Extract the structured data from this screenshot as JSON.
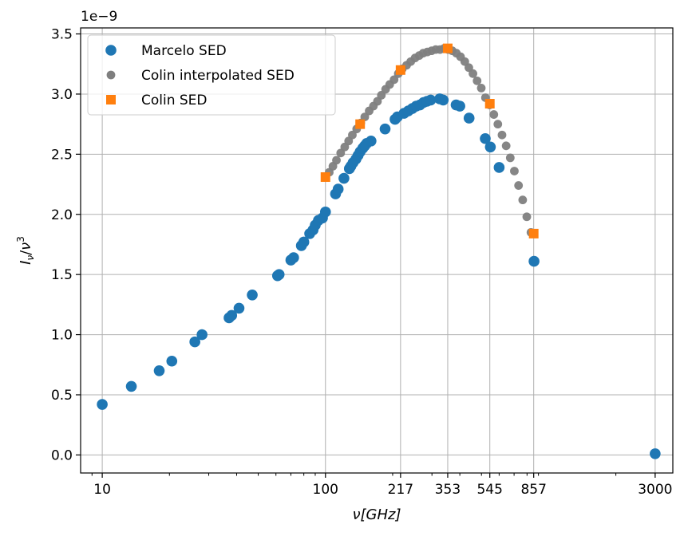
{
  "chart_data": {
    "type": "scatter",
    "x_scale": "log",
    "xlim": [
      8,
      3600
    ],
    "ylim": [
      -0.15,
      3.55
    ],
    "y_multiplier": "1e−9",
    "xlabel": "ν[GHz]",
    "ylabel_main": "I",
    "ylabel_sub": "ν",
    "ylabel_sep": "/",
    "ylabel_base": "ν",
    "ylabel_sup": "3",
    "x_ticks": [
      {
        "value": 10,
        "label": "10"
      },
      {
        "value": 100,
        "label": "100"
      },
      {
        "value": 217,
        "label": "217"
      },
      {
        "value": 353,
        "label": "353"
      },
      {
        "value": 545,
        "label": "545"
      },
      {
        "value": 857,
        "label": "857"
      },
      {
        "value": 3000,
        "label": "3000"
      }
    ],
    "y_ticks": [
      {
        "value": 0.0,
        "label": "0.0"
      },
      {
        "value": 0.5,
        "label": "0.5"
      },
      {
        "value": 1.0,
        "label": "1.0"
      },
      {
        "value": 1.5,
        "label": "1.5"
      },
      {
        "value": 2.0,
        "label": "2.0"
      },
      {
        "value": 2.5,
        "label": "2.5"
      },
      {
        "value": 3.0,
        "label": "3.0"
      },
      {
        "value": 3.5,
        "label": "3.5"
      }
    ],
    "grid": true,
    "legend_position": "top-left",
    "series": [
      {
        "name": "Marcelo SED",
        "marker": "circle",
        "color": "#1f77b4",
        "x": [
          10,
          13.5,
          18,
          20.5,
          26,
          28,
          37,
          38,
          41,
          47,
          61,
          62,
          70,
          72,
          78,
          80,
          85,
          88,
          90,
          93,
          97,
          100,
          111,
          114,
          121,
          128,
          130,
          133,
          137,
          140,
          143,
          147,
          150,
          153,
          160,
          185,
          205,
          210,
          225,
          235,
          245,
          255,
          265,
          275,
          285,
          296,
          325,
          337,
          385,
          400,
          440,
          520,
          548,
          600,
          860,
          3000
        ],
        "y": [
          0.42,
          0.57,
          0.7,
          0.78,
          0.94,
          1.0,
          1.14,
          1.16,
          1.22,
          1.33,
          1.49,
          1.5,
          1.62,
          1.64,
          1.74,
          1.77,
          1.84,
          1.87,
          1.91,
          1.95,
          1.97,
          2.02,
          2.17,
          2.21,
          2.3,
          2.38,
          2.4,
          2.43,
          2.46,
          2.49,
          2.52,
          2.55,
          2.57,
          2.59,
          2.61,
          2.71,
          2.79,
          2.81,
          2.84,
          2.86,
          2.88,
          2.9,
          2.91,
          2.93,
          2.94,
          2.95,
          2.96,
          2.95,
          2.91,
          2.9,
          2.8,
          2.63,
          2.56,
          2.39,
          1.61,
          0.01
        ]
      },
      {
        "name": "Colin interpolated SED",
        "marker": "circle",
        "color": "#7f7f7f",
        "x": [
          100,
          104,
          108,
          112,
          117,
          122,
          127,
          132,
          138,
          144,
          150,
          157,
          164,
          171,
          178,
          186,
          194,
          203,
          212,
          221,
          231,
          241,
          252,
          263,
          274,
          286,
          299,
          312,
          326,
          340,
          355,
          370,
          386,
          403,
          421,
          439,
          458,
          478,
          499,
          521,
          544,
          568,
          592,
          618,
          645,
          673,
          702,
          733,
          765,
          798,
          833
        ],
        "y": [
          2.31,
          2.35,
          2.4,
          2.45,
          2.51,
          2.56,
          2.61,
          2.66,
          2.71,
          2.76,
          2.81,
          2.86,
          2.9,
          2.94,
          2.99,
          3.04,
          3.08,
          3.12,
          3.17,
          3.21,
          3.24,
          3.27,
          3.3,
          3.32,
          3.34,
          3.35,
          3.36,
          3.37,
          3.37,
          3.38,
          3.37,
          3.36,
          3.34,
          3.31,
          3.27,
          3.22,
          3.17,
          3.11,
          3.05,
          2.97,
          2.91,
          2.83,
          2.75,
          2.66,
          2.57,
          2.47,
          2.36,
          2.24,
          2.12,
          1.98,
          1.85
        ]
      },
      {
        "name": "Colin SED",
        "marker": "square",
        "color": "#ff7f0e",
        "x": [
          100,
          143,
          217,
          353,
          545,
          857
        ],
        "y": [
          2.31,
          2.75,
          3.2,
          3.38,
          2.92,
          1.84
        ]
      }
    ]
  }
}
